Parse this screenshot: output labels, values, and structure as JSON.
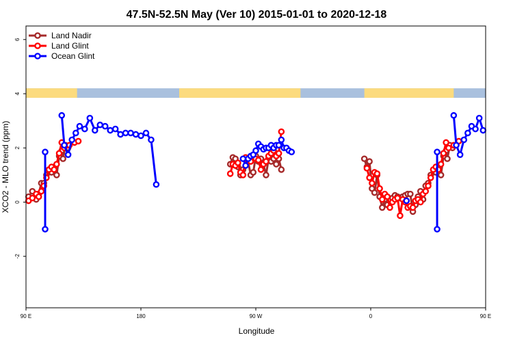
{
  "chart_data": {
    "type": "line",
    "title": "47.5N-52.5N May (Ver 10)   2015-01-01 to 2020-12-18",
    "xlabel": "Longitude",
    "ylabel": "XCO2 - MLO trend (ppm)",
    "xlim": [
      90,
      450
    ],
    "ylim": [
      -3.9,
      6.5
    ],
    "xticks": [
      {
        "value": 90,
        "label": "90 E"
      },
      {
        "value": 180,
        "label": "180"
      },
      {
        "value": 270,
        "label": "90 W"
      },
      {
        "value": 360,
        "label": "0"
      },
      {
        "value": 450,
        "label": "90 E"
      }
    ],
    "yticks": [
      {
        "value": -2,
        "label": "-2"
      },
      {
        "value": 0,
        "label": "0"
      },
      {
        "value": 2,
        "label": "2"
      },
      {
        "value": 4,
        "label": "4"
      },
      {
        "value": 6,
        "label": "6"
      }
    ],
    "grid": false,
    "legend_position": "top-left",
    "land_ocean_band": {
      "y_range": [
        3.85,
        4.2
      ],
      "land_color": "#FCDB7E",
      "ocean_color": "#A9C0DE",
      "land_segments": [
        [
          90,
          130
        ],
        [
          210,
          305
        ],
        [
          355,
          425
        ]
      ]
    },
    "series": [
      {
        "name": "Land Nadir",
        "color": "#A52A2A",
        "segments": [
          [
            [
              92,
              0.2
            ],
            [
              95,
              0.4
            ],
            [
              98,
              0.1
            ],
            [
              100,
              0.3
            ],
            [
              102,
              0.7
            ],
            [
              104,
              0.7
            ],
            [
              106,
              1.0
            ],
            [
              108,
              1.2
            ],
            [
              110,
              1.1
            ],
            [
              112,
              1.3
            ],
            [
              114,
              1.0
            ],
            [
              116,
              1.7
            ],
            [
              118,
              1.9
            ],
            [
              119,
              1.6
            ],
            [
              121,
              2.1
            ],
            [
              123,
              2.0
            ]
          ],
          [
            [
              250,
              1.4
            ],
            [
              252,
              1.65
            ],
            [
              254,
              1.6
            ],
            [
              256,
              1.3
            ],
            [
              258,
              1.0
            ],
            [
              260,
              1.2
            ],
            [
              262,
              1.6
            ],
            [
              264,
              1.5
            ],
            [
              266,
              1.0
            ],
            [
              268,
              1.1
            ],
            [
              270,
              1.7
            ],
            [
              272,
              1.5
            ],
            [
              274,
              1.6
            ],
            [
              276,
              1.4
            ],
            [
              278,
              1.0
            ],
            [
              280,
              1.6
            ],
            [
              282,
              1.5
            ],
            [
              284,
              1.6
            ],
            [
              286,
              1.4
            ],
            [
              288,
              1.6
            ],
            [
              290,
              1.2
            ]
          ],
          [
            [
              355,
              1.6
            ],
            [
              357,
              1.3
            ],
            [
              359,
              1.5
            ],
            [
              361,
              0.5
            ],
            [
              363,
              0.35
            ],
            [
              365,
              1.0
            ],
            [
              367,
              0.2
            ],
            [
              369,
              -0.2
            ],
            [
              371,
              0.1
            ],
            [
              373,
              -0.1
            ],
            [
              375,
              0.1
            ],
            [
              377,
              0.15
            ],
            [
              379,
              0.25
            ],
            [
              381,
              0.2
            ],
            [
              383,
              0.15
            ],
            [
              385,
              0.2
            ],
            [
              387,
              0.25
            ],
            [
              389,
              0.3
            ],
            [
              391,
              0.3
            ],
            [
              393,
              -0.35
            ],
            [
              395,
              -0.1
            ],
            [
              397,
              0.2
            ],
            [
              399,
              0.4
            ],
            [
              401,
              0.1
            ],
            [
              403,
              0.6
            ],
            [
              405,
              0.7
            ],
            [
              407,
              1.0
            ],
            [
              409,
              1.2
            ],
            [
              411,
              1.1
            ],
            [
              413,
              1.3
            ],
            [
              415,
              1.0
            ],
            [
              417,
              1.7
            ],
            [
              419,
              1.9
            ],
            [
              420,
              1.6
            ],
            [
              422,
              2.1
            ],
            [
              424,
              2.0
            ]
          ]
        ]
      },
      {
        "name": "Land Glint",
        "color": "#FF0000",
        "segments": [
          [
            [
              92,
              0.05
            ],
            [
              95,
              0.15
            ],
            [
              98,
              0.3
            ],
            [
              100,
              0.2
            ],
            [
              102,
              0.4
            ],
            [
              104,
              0.6
            ],
            [
              106,
              0.9
            ],
            [
              108,
              1.2
            ],
            [
              110,
              1.3
            ],
            [
              112,
              1.2
            ],
            [
              114,
              1.4
            ],
            [
              116,
              1.8
            ],
            [
              118,
              2.2
            ],
            [
              120,
              2.0
            ],
            [
              124,
              2.1
            ],
            [
              128,
              2.2
            ],
            [
              131,
              2.25
            ]
          ],
          [
            [
              250,
              1.05
            ],
            [
              252,
              1.4
            ],
            [
              254,
              1.35
            ],
            [
              256,
              1.45
            ],
            [
              258,
              1.1
            ],
            [
              260,
              1.0
            ],
            [
              262,
              1.65
            ],
            [
              264,
              1.6
            ],
            [
              266,
              1.5
            ],
            [
              268,
              1.7
            ],
            [
              270,
              1.6
            ],
            [
              272,
              1.55
            ],
            [
              274,
              1.2
            ],
            [
              276,
              1.4
            ],
            [
              278,
              1.5
            ],
            [
              280,
              1.7
            ],
            [
              282,
              1.8
            ],
            [
              284,
              1.9
            ],
            [
              286,
              1.7
            ],
            [
              288,
              1.8
            ],
            [
              290,
              2.6
            ]
          ],
          [
            [
              357,
              1.25
            ],
            [
              359,
              0.9
            ],
            [
              361,
              0.7
            ],
            [
              363,
              1.1
            ],
            [
              365,
              1.05
            ],
            [
              367,
              0.5
            ],
            [
              369,
              0.1
            ],
            [
              371,
              0.3
            ],
            [
              373,
              0.2
            ],
            [
              375,
              -0.2
            ],
            [
              377,
              0.0
            ],
            [
              379,
              0.1
            ],
            [
              381,
              0.15
            ],
            [
              383,
              -0.5
            ],
            [
              385,
              0.1
            ],
            [
              387,
              0.0
            ],
            [
              389,
              -0.2
            ],
            [
              391,
              -0.15
            ],
            [
              393,
              -0.2
            ],
            [
              395,
              0.05
            ],
            [
              397,
              0.1
            ],
            [
              399,
              0.0
            ],
            [
              401,
              0.3
            ],
            [
              403,
              0.4
            ],
            [
              405,
              0.6
            ],
            [
              407,
              0.9
            ],
            [
              409,
              1.2
            ],
            [
              411,
              1.3
            ],
            [
              413,
              1.2
            ],
            [
              415,
              1.4
            ],
            [
              417,
              1.8
            ],
            [
              419,
              2.2
            ],
            [
              421,
              2.0
            ],
            [
              425,
              2.1
            ],
            [
              429,
              2.25
            ]
          ]
        ]
      },
      {
        "name": "Ocean Glint",
        "color": "#0000FF",
        "segments": [
          [
            [
              105,
              1.85
            ],
            [
              105,
              -1.0
            ]
          ],
          [
            [
              118,
              3.2
            ],
            [
              120,
              2.1
            ],
            [
              123,
              1.75
            ],
            [
              126,
              2.3
            ],
            [
              129,
              2.55
            ],
            [
              132,
              2.8
            ],
            [
              136,
              2.7
            ],
            [
              140,
              3.1
            ],
            [
              144,
              2.65
            ],
            [
              148,
              2.85
            ],
            [
              152,
              2.8
            ],
            [
              156,
              2.65
            ],
            [
              160,
              2.7
            ],
            [
              164,
              2.5
            ],
            [
              168,
              2.55
            ],
            [
              172,
              2.55
            ],
            [
              176,
              2.5
            ],
            [
              180,
              2.45
            ],
            [
              184,
              2.55
            ],
            [
              188,
              2.3
            ],
            [
              192,
              0.65
            ]
          ],
          [
            [
              260,
              1.6
            ],
            [
              262,
              1.35
            ],
            [
              264,
              1.6
            ],
            [
              266,
              1.7
            ],
            [
              268,
              1.75
            ],
            [
              270,
              1.9
            ],
            [
              272,
              2.15
            ],
            [
              274,
              2.05
            ],
            [
              276,
              1.95
            ],
            [
              278,
              2.0
            ],
            [
              280,
              2.0
            ],
            [
              282,
              2.1
            ],
            [
              284,
              2.0
            ],
            [
              286,
              2.1
            ],
            [
              288,
              2.1
            ],
            [
              290,
              2.3
            ],
            [
              292,
              2.0
            ],
            [
              294,
              2.0
            ],
            [
              296,
              1.9
            ],
            [
              298,
              1.85
            ]
          ],
          [
            [
              388,
              0.05
            ]
          ],
          [
            [
              412,
              1.85
            ],
            [
              412,
              -1.0
            ]
          ],
          [
            [
              425,
              3.2
            ],
            [
              427,
              2.1
            ],
            [
              430,
              1.75
            ],
            [
              433,
              2.3
            ],
            [
              436,
              2.55
            ],
            [
              439,
              2.8
            ],
            [
              442,
              2.7
            ],
            [
              445,
              3.1
            ],
            [
              448,
              2.65
            ]
          ]
        ]
      }
    ]
  }
}
